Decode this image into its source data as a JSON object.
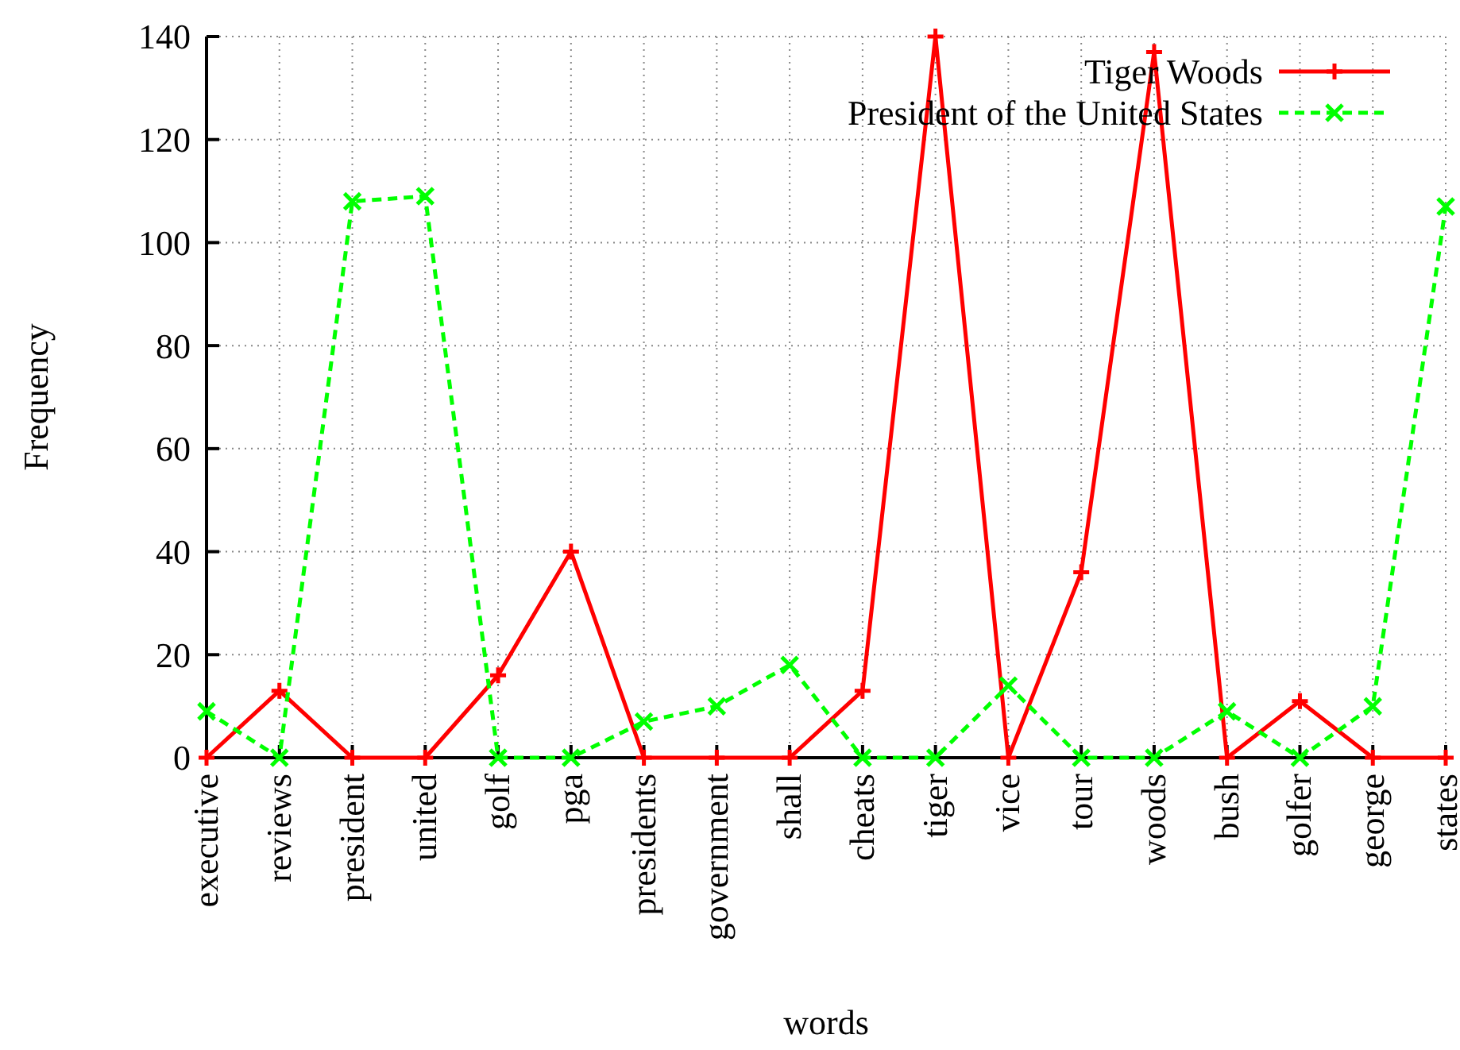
{
  "chart_data": {
    "type": "line",
    "xlabel": "words",
    "ylabel": "Frequency",
    "categories": [
      "executive",
      "reviews",
      "president",
      "united",
      "golf",
      "pga",
      "presidents",
      "government",
      "shall",
      "cheats",
      "tiger",
      "vice",
      "tour",
      "woods",
      "bush",
      "golfer",
      "george",
      "states"
    ],
    "series": [
      {
        "name": "Tiger Woods",
        "color": "#ff0000",
        "marker": "cross",
        "line_style": "solid",
        "values": [
          0,
          13,
          0,
          0,
          16,
          40,
          0,
          0,
          0,
          13,
          140,
          0,
          36,
          137,
          0,
          11,
          0,
          0
        ]
      },
      {
        "name": "President of the United States",
        "color": "#00ff00",
        "marker": "cross",
        "line_style": "dashed",
        "values": [
          9,
          0,
          108,
          109,
          0,
          0,
          7,
          10,
          18,
          0,
          0,
          14,
          0,
          0,
          9,
          0,
          10,
          107
        ]
      }
    ],
    "ylim": [
      0,
      140
    ],
    "yticks": [
      0,
      20,
      40,
      60,
      80,
      100,
      120,
      140
    ],
    "grid": true,
    "legend": "top right"
  }
}
